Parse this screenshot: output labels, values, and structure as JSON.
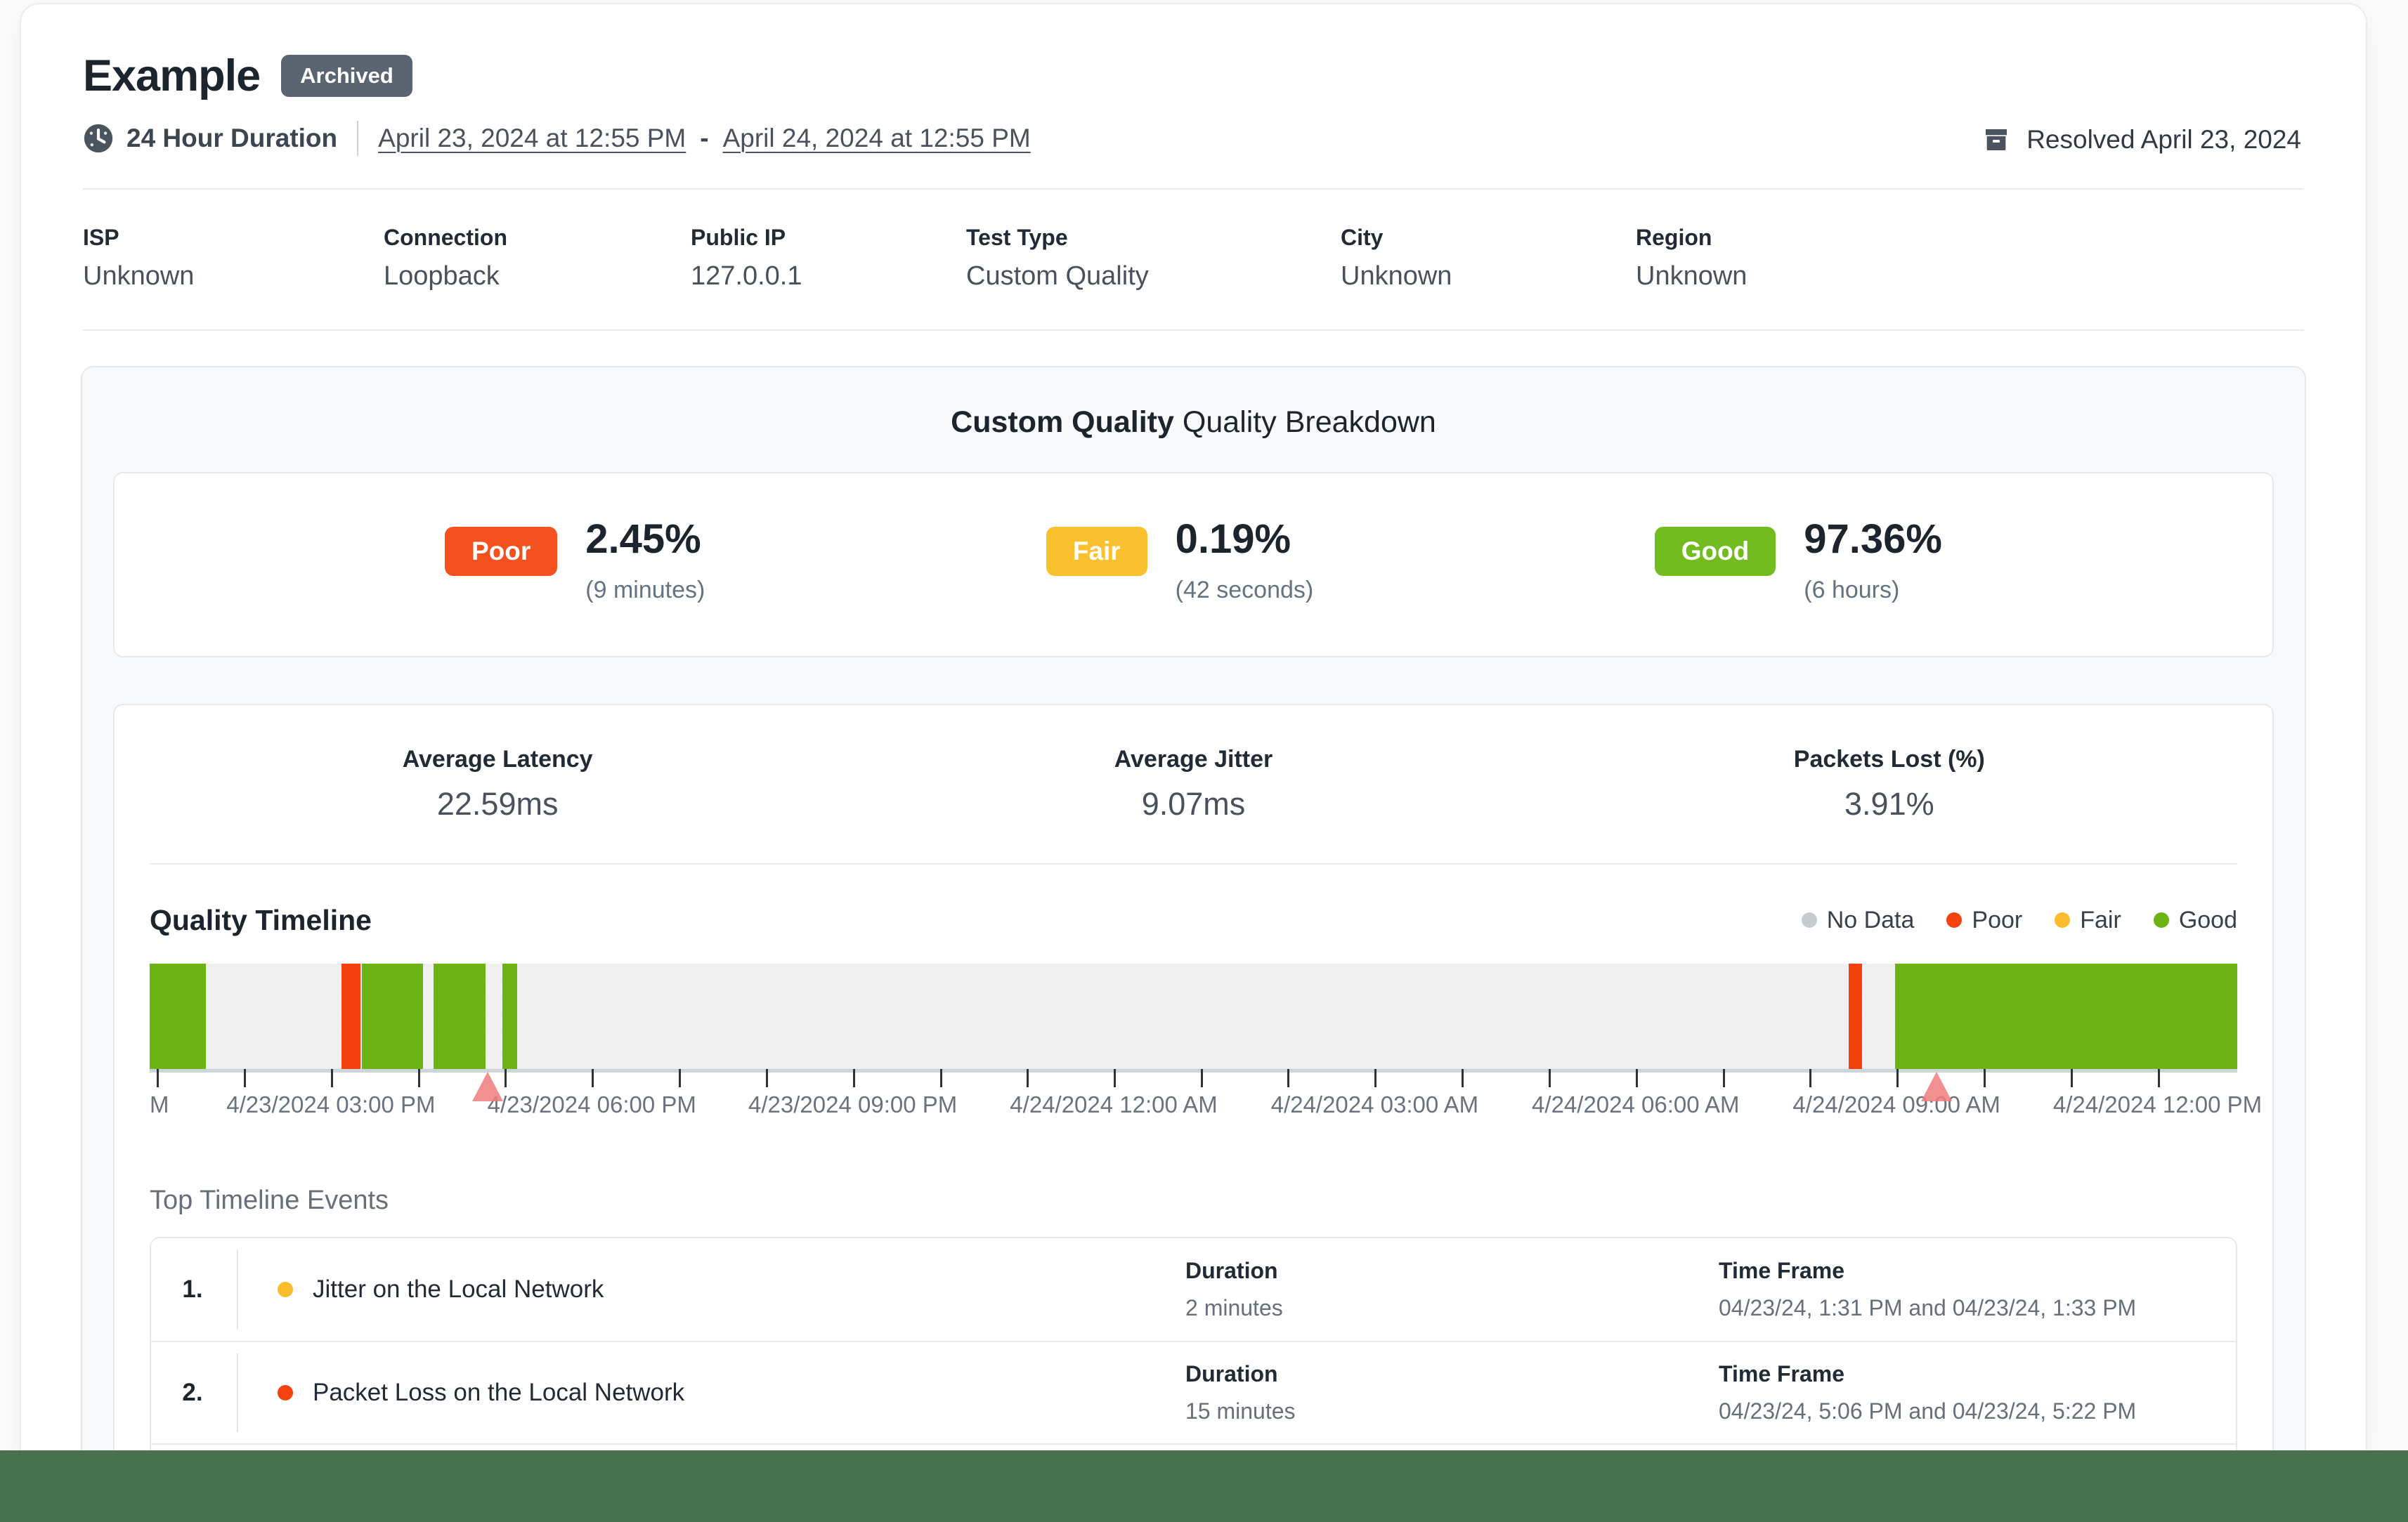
{
  "header": {
    "title": "Example",
    "status_badge": "Archived",
    "resolved_label": "Resolved April 23, 2024",
    "duration_label": "24 Hour Duration",
    "date_start": "April 23, 2024 at 12:55 PM",
    "date_separator": "-",
    "date_end": "April 24, 2024 at 12:55 PM"
  },
  "info": {
    "columns": [
      {
        "label": "ISP",
        "value": "Unknown"
      },
      {
        "label": "Connection",
        "value": "Loopback"
      },
      {
        "label": "Public IP",
        "value": "127.0.0.1"
      },
      {
        "label": "Test Type",
        "value": "Custom Quality"
      },
      {
        "label": "City",
        "value": "Unknown"
      },
      {
        "label": "Region",
        "value": "Unknown"
      }
    ]
  },
  "breakdown": {
    "heading_bold": "Custom Quality",
    "heading_rest": "Quality Breakdown",
    "stats": [
      {
        "label": "Poor",
        "value": "2.45%",
        "sub": "(9 minutes)",
        "badge_class": "badge-poor"
      },
      {
        "label": "Fair",
        "value": "0.19%",
        "sub": "(42 seconds)",
        "badge_class": "badge-fair"
      },
      {
        "label": "Good",
        "value": "97.36%",
        "sub": "(6 hours)",
        "badge_class": "badge-good"
      }
    ],
    "metrics": [
      {
        "label": "Average Latency",
        "value": "22.59ms"
      },
      {
        "label": "Average Jitter",
        "value": "9.07ms"
      },
      {
        "label": "Packets Lost (%)",
        "value": "3.91%"
      }
    ]
  },
  "timeline": {
    "title": "Quality Timeline",
    "legend": [
      {
        "label": "No Data",
        "key": "nodata"
      },
      {
        "label": "Poor",
        "key": "poor"
      },
      {
        "label": "Fair",
        "key": "fair"
      },
      {
        "label": "Good",
        "key": "good"
      }
    ],
    "chart": {
      "type": "timeline-band",
      "range_start": "April 23, 2024 12:55 PM",
      "range_end": "April 24, 2024 12:55 PM",
      "segments": [
        {
          "pct": 0,
          "width": 2.7,
          "quality": "good"
        },
        {
          "pct": 9.2,
          "width": 0.9,
          "quality": "poor"
        },
        {
          "pct": 10.15,
          "width": 2.95,
          "quality": "good"
        },
        {
          "pct": 13.6,
          "width": 2.5,
          "quality": "good"
        },
        {
          "pct": 16.9,
          "width": 0.7,
          "quality": "good"
        },
        {
          "pct": 81.4,
          "width": 0.62,
          "quality": "poor"
        },
        {
          "pct": 83.6,
          "width": 16.4,
          "quality": "good"
        }
      ],
      "tick_pcts": [
        0.35,
        4.51,
        8.68,
        12.85,
        17.01,
        21.18,
        25.35,
        29.51,
        33.68,
        37.85,
        42.01,
        46.18,
        50.35,
        54.51,
        58.68,
        62.85,
        67.01,
        71.18,
        75.35,
        79.51,
        83.68,
        87.85,
        92.01,
        96.18
      ],
      "axis_labels": [
        {
          "text": "M",
          "pct": 0,
          "align": "start"
        },
        {
          "text": "4/23/2024 03:00 PM",
          "pct": 8.68,
          "align": "center"
        },
        {
          "text": "4/23/2024 06:00 PM",
          "pct": 21.18,
          "align": "center"
        },
        {
          "text": "4/23/2024 09:00 PM",
          "pct": 33.68,
          "align": "center"
        },
        {
          "text": "4/24/2024 12:00 AM",
          "pct": 46.18,
          "align": "center"
        },
        {
          "text": "4/24/2024 03:00 AM",
          "pct": 58.68,
          "align": "center"
        },
        {
          "text": "4/24/2024 06:00 AM",
          "pct": 71.18,
          "align": "center"
        },
        {
          "text": "4/24/2024 09:00 AM",
          "pct": 83.68,
          "align": "center"
        },
        {
          "text": "4/24/2024 12:00 PM",
          "pct": 96.18,
          "align": "center"
        }
      ],
      "markers": [
        {
          "pct": 16.2
        },
        {
          "pct": 85.6
        }
      ]
    }
  },
  "events": {
    "title": "Top Timeline Events",
    "duration_header": "Duration",
    "timeframe_header": "Time Frame",
    "rows": [
      {
        "num": "1.",
        "severity": "fair",
        "title": "Jitter on the Local Network",
        "duration": "2 minutes",
        "timeframe": "04/23/24, 1:31 PM and 04/23/24, 1:33 PM"
      },
      {
        "num": "2.",
        "severity": "poor",
        "title": "Packet Loss on the Local Network",
        "duration": "15 minutes",
        "timeframe": "04/23/24, 5:06 PM and 04/23/24, 5:22 PM"
      }
    ]
  },
  "colors": {
    "poor": "#F4410E",
    "fair": "#FBBD2C",
    "good": "#6CB414",
    "nodata": "#C7CBCE",
    "poor_badge": "#F4511E",
    "fair_badge": "#FBC02D",
    "good_badge": "#72BC1F",
    "footer_green": "#47714D",
    "marker_pink": "#EF7C7C"
  }
}
